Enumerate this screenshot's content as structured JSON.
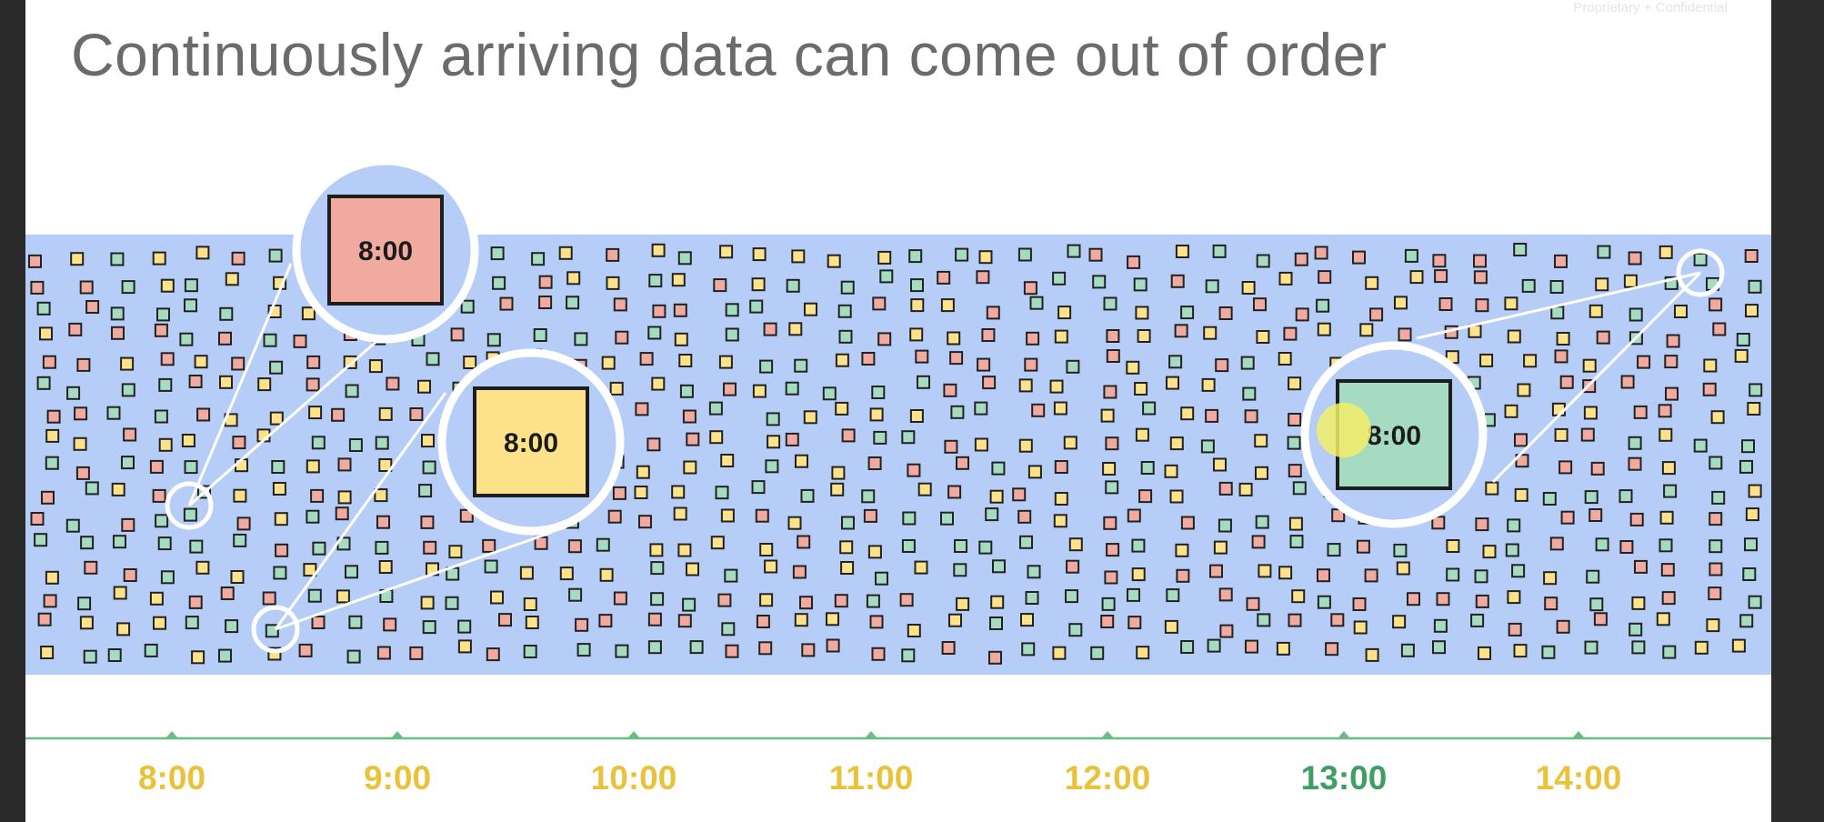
{
  "slide": {
    "title": "Continuously arriving data can come out of order",
    "footer_note": "Proprietary + Confidential"
  },
  "colors": {
    "background": "#ffffff",
    "stream_band": "#b6cdf8",
    "axis_line": "#6dbb84",
    "element_red": "#f1aaa0",
    "element_yellow": "#fde28a",
    "element_green": "#a5dcc1",
    "tick_label_default": "#e9c23a",
    "tick_label_highlight": "#3e9e64",
    "cursor": "#f3ee6a"
  },
  "timeline": {
    "ticks": [
      {
        "label": "8:00",
        "highlight": false
      },
      {
        "label": "9:00",
        "highlight": false
      },
      {
        "label": "10:00",
        "highlight": false
      },
      {
        "label": "11:00",
        "highlight": false
      },
      {
        "label": "12:00",
        "highlight": false
      },
      {
        "label": "13:00",
        "highlight": true
      },
      {
        "label": "14:00",
        "highlight": false
      }
    ]
  },
  "callouts": [
    {
      "label": "8:00",
      "color": "red"
    },
    {
      "label": "8:00",
      "color": "yellow"
    },
    {
      "label": "8:00",
      "color": "green"
    }
  ]
}
